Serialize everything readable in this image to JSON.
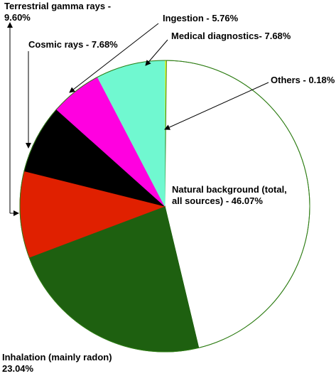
{
  "chart_data": {
    "type": "pie",
    "title": "",
    "start_angle_deg": 0,
    "direction": "clockwise",
    "slices": [
      {
        "label": "Others - 0.18%",
        "value": 0.18,
        "color": "#ffff00"
      },
      {
        "label": "Natural background (total, all sources) - 46.07%",
        "label_lines": [
          "Natural background (total,",
          "all sources) - 46.07%"
        ],
        "value": 46.07,
        "color": "#ffffff"
      },
      {
        "label": "Inhalation (mainly radon) 23.04%",
        "label_lines": [
          "Inhalation (mainly radon)",
          "23.04%"
        ],
        "value": 23.04,
        "color": "#1e6010"
      },
      {
        "label": "Terrestrial gamma rays - 9.60%",
        "label_lines": [
          "Terrestrial gamma rays -",
          "9.60%"
        ],
        "value": 9.6,
        "color": "#e02000"
      },
      {
        "label": "Cosmic rays - 7.68%",
        "value": 7.68,
        "color": "#000000"
      },
      {
        "label": "Ingestion - 5.76%",
        "value": 5.76,
        "color": "#ff00e0"
      },
      {
        "label": "Medical diagnostics- 7.68%",
        "value": 7.68,
        "color": "#70f8d0"
      }
    ],
    "outline_color": "#2e7d14"
  }
}
